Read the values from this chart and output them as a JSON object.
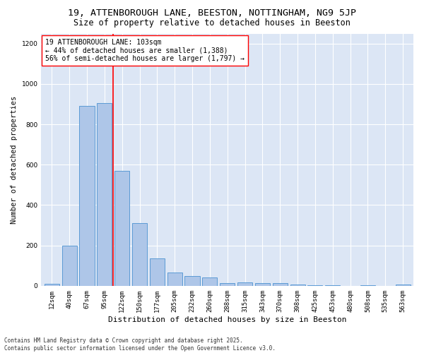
{
  "title": "19, ATTENBOROUGH LANE, BEESTON, NOTTINGHAM, NG9 5JP",
  "subtitle": "Size of property relative to detached houses in Beeston",
  "xlabel": "Distribution of detached houses by size in Beeston",
  "ylabel": "Number of detached properties",
  "categories": [
    "12sqm",
    "40sqm",
    "67sqm",
    "95sqm",
    "122sqm",
    "150sqm",
    "177sqm",
    "205sqm",
    "232sqm",
    "260sqm",
    "288sqm",
    "315sqm",
    "343sqm",
    "370sqm",
    "398sqm",
    "425sqm",
    "453sqm",
    "480sqm",
    "508sqm",
    "535sqm",
    "563sqm"
  ],
  "values": [
    10,
    200,
    890,
    905,
    570,
    310,
    135,
    65,
    50,
    42,
    15,
    18,
    15,
    12,
    5,
    3,
    2,
    0,
    2,
    0,
    8
  ],
  "bar_color": "#aec6e8",
  "bar_edge_color": "#5b9bd5",
  "vline_x": 3.5,
  "vline_color": "red",
  "annotation_text": "19 ATTENBOROUGH LANE: 103sqm\n← 44% of detached houses are smaller (1,388)\n56% of semi-detached houses are larger (1,797) →",
  "annotation_box_color": "white",
  "annotation_box_edge": "red",
  "footer": "Contains HM Land Registry data © Crown copyright and database right 2025.\nContains public sector information licensed under the Open Government Licence v3.0.",
  "background_color": "#dce6f5",
  "ylim": [
    0,
    1250
  ],
  "title_fontsize": 9.5,
  "subtitle_fontsize": 8.5,
  "tick_fontsize": 6.5,
  "ylabel_fontsize": 7.5,
  "xlabel_fontsize": 8,
  "annotation_fontsize": 7,
  "footer_fontsize": 5.5
}
